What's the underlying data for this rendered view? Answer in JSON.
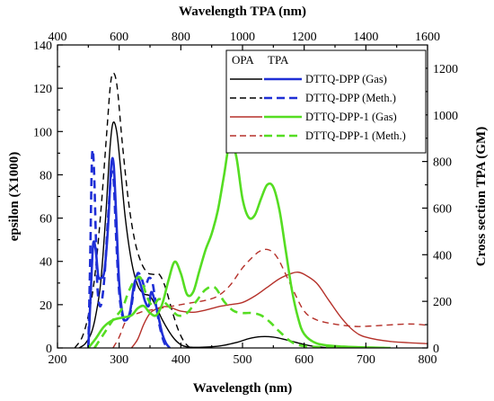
{
  "chart_data": {
    "type": "line",
    "xlabel": "Wavelength (nm)",
    "ylabel": "epsilon (X1000)",
    "x2label": "Wavelength TPA (nm)",
    "y2label": "Cross section TPA (GM)",
    "xlim": [
      200,
      800
    ],
    "ylim": [
      0,
      140
    ],
    "x2lim": [
      400,
      1600
    ],
    "y2lim": [
      0,
      1300
    ],
    "x_ticks": [
      200,
      300,
      400,
      500,
      600,
      700,
      800
    ],
    "y_ticks": [
      0,
      20,
      40,
      60,
      80,
      100,
      120,
      140
    ],
    "x2_ticks": [
      400,
      600,
      800,
      1000,
      1200,
      1400,
      1600
    ],
    "y2_ticks": [
      0,
      200,
      400,
      600,
      800,
      1000,
      1200
    ],
    "grid": false,
    "legend_position": "top-right",
    "legend_headers": [
      "OPA",
      "TPA"
    ],
    "legend_entries": [
      {
        "label": "DTTQ-DPP (Gas)",
        "color": "#000000",
        "tpa_color": "#1f2fd6",
        "dashed": false
      },
      {
        "label": "DTTQ-DPP (Meth.)",
        "color": "#000000",
        "tpa_color": "#1f2fd6",
        "dashed": true
      },
      {
        "label": "DTTQ-DPP-1 (Gas)",
        "color": "#b5312a",
        "tpa_color": "#55dd22",
        "dashed": false
      },
      {
        "label": "DTTQ-DPP-1 (Meth.)",
        "color": "#b5312a",
        "tpa_color": "#55dd22",
        "dashed": true
      }
    ],
    "series": [
      {
        "name": "DTTQ-DPP (Gas)",
        "kind": "OPA",
        "axis": "left",
        "color": "#000000",
        "dashed": false,
        "x": [
          235,
          245,
          255,
          262,
          270,
          278,
          285,
          290,
          296,
          302,
          310,
          320,
          330,
          340,
          350,
          360,
          370,
          380,
          390,
          400,
          410,
          430,
          460,
          490,
          510,
          530,
          550,
          570,
          590,
          610,
          630,
          650
        ],
        "y": [
          0,
          2,
          7,
          15,
          30,
          60,
          92,
          104,
          100,
          84,
          60,
          40,
          29,
          25,
          24,
          19,
          13,
          8,
          4,
          1.5,
          0.5,
          0.3,
          0.8,
          2.5,
          4.3,
          5.2,
          5,
          3.8,
          2.3,
          1,
          0.3,
          0
        ]
      },
      {
        "name": "DTTQ-DPP (Meth.)",
        "kind": "OPA",
        "axis": "left",
        "color": "#000000",
        "dashed": true,
        "x": [
          228,
          240,
          250,
          260,
          270,
          280,
          286,
          291,
          297,
          305,
          315,
          325,
          335,
          345,
          355,
          365,
          375,
          385,
          395,
          405,
          415
        ],
        "y": [
          0,
          5,
          15,
          32,
          62,
          100,
          122,
          127,
          120,
          95,
          68,
          50,
          40,
          35,
          34,
          34,
          28,
          18,
          9,
          3,
          0
        ]
      },
      {
        "name": "DTTQ-DPP-1 (Gas)",
        "kind": "OPA",
        "axis": "left",
        "color": "#b5312a",
        "dashed": false,
        "x": [
          320,
          330,
          340,
          350,
          360,
          370,
          380,
          390,
          400,
          420,
          440,
          460,
          480,
          500,
          520,
          540,
          560,
          580,
          590,
          600,
          620,
          640,
          660,
          680,
          700,
          740,
          800
        ],
        "y": [
          0,
          4,
          11,
          16,
          18,
          19,
          19,
          18,
          17,
          16.5,
          17.5,
          19,
          20,
          21,
          24,
          28,
          32,
          34.5,
          35,
          34,
          30,
          22,
          14,
          8,
          5,
          3,
          2
        ]
      },
      {
        "name": "DTTQ-DPP-1 (Meth.)",
        "kind": "OPA",
        "axis": "left",
        "color": "#b5312a",
        "dashed": true,
        "x": [
          290,
          300,
          310,
          320,
          330,
          340,
          350,
          360,
          370,
          380,
          390,
          400,
          420,
          440,
          460,
          480,
          500,
          520,
          530,
          540,
          550,
          560,
          580,
          600,
          620,
          650,
          680,
          700,
          730,
          760,
          780,
          800
        ],
        "y": [
          0,
          5,
          12,
          15,
          16,
          17,
          17.5,
          18,
          18.5,
          19,
          19.5,
          20,
          21,
          22,
          24,
          29,
          37,
          43,
          45,
          45.5,
          44,
          40,
          28,
          17,
          13,
          11,
          10,
          10,
          10.5,
          11,
          11,
          10.5
        ]
      },
      {
        "name": "DTTQ-DPP (Gas)",
        "kind": "TPA",
        "axis": "right",
        "color": "#1f2fd6",
        "dashed": false,
        "x": [
          250,
          255,
          258,
          262,
          266,
          270,
          276,
          282,
          287,
          291,
          295,
          300,
          306,
          312,
          318,
          324,
          330,
          336,
          342,
          348,
          352,
          358,
          364,
          370,
          376,
          382
        ],
        "y": [
          0,
          300,
          450,
          420,
          310,
          300,
          330,
          520,
          780,
          790,
          580,
          280,
          140,
          120,
          160,
          270,
          300,
          260,
          200,
          180,
          240,
          200,
          130,
          60,
          20,
          0
        ]
      },
      {
        "name": "DTTQ-DPP (Meth.)",
        "kind": "TPA",
        "axis": "right",
        "color": "#1f2fd6",
        "dashed": true,
        "x": [
          250,
          253,
          256,
          259,
          262,
          265,
          270,
          276,
          282,
          287,
          291,
          295,
          300,
          306,
          312,
          318,
          324,
          330,
          336,
          342,
          348,
          354,
          360,
          366,
          372,
          378
        ],
        "y": [
          0,
          380,
          820,
          780,
          500,
          250,
          180,
          300,
          560,
          740,
          720,
          480,
          240,
          130,
          120,
          150,
          250,
          320,
          300,
          260,
          300,
          280,
          180,
          90,
          30,
          0
        ]
      },
      {
        "name": "DTTQ-DPP-1 (Gas)",
        "kind": "TPA",
        "axis": "right",
        "color": "#55dd22",
        "dashed": false,
        "x": [
          250,
          262,
          275,
          290,
          305,
          320,
          330,
          340,
          350,
          360,
          370,
          380,
          390,
          400,
          410,
          420,
          430,
          440,
          450,
          460,
          470,
          480,
          490,
          500,
          510,
          520,
          530,
          540,
          550,
          560,
          570,
          580,
          590,
          600,
          620,
          650,
          690,
          740
        ],
        "y": [
          0,
          40,
          90,
          120,
          130,
          140,
          170,
          180,
          150,
          140,
          190,
          290,
          370,
          320,
          230,
          240,
          330,
          420,
          490,
          590,
          740,
          890,
          820,
          640,
          560,
          570,
          640,
          700,
          690,
          590,
          420,
          250,
          130,
          60,
          20,
          8,
          3,
          0
        ]
      },
      {
        "name": "DTTQ-DPP-1 (Meth.)",
        "kind": "TPA",
        "axis": "right",
        "color": "#55dd22",
        "dashed": true,
        "x": [
          260,
          275,
          290,
          305,
          315,
          325,
          335,
          345,
          355,
          365,
          380,
          395,
          410,
          425,
          440,
          455,
          470,
          485,
          500,
          515,
          530,
          545,
          560,
          580,
          600,
          640,
          680,
          730
        ],
        "y": [
          0,
          60,
          120,
          170,
          240,
          290,
          300,
          220,
          180,
          210,
          180,
          140,
          150,
          200,
          250,
          260,
          200,
          160,
          150,
          150,
          140,
          110,
          70,
          25,
          8,
          3,
          1,
          0
        ]
      }
    ]
  }
}
